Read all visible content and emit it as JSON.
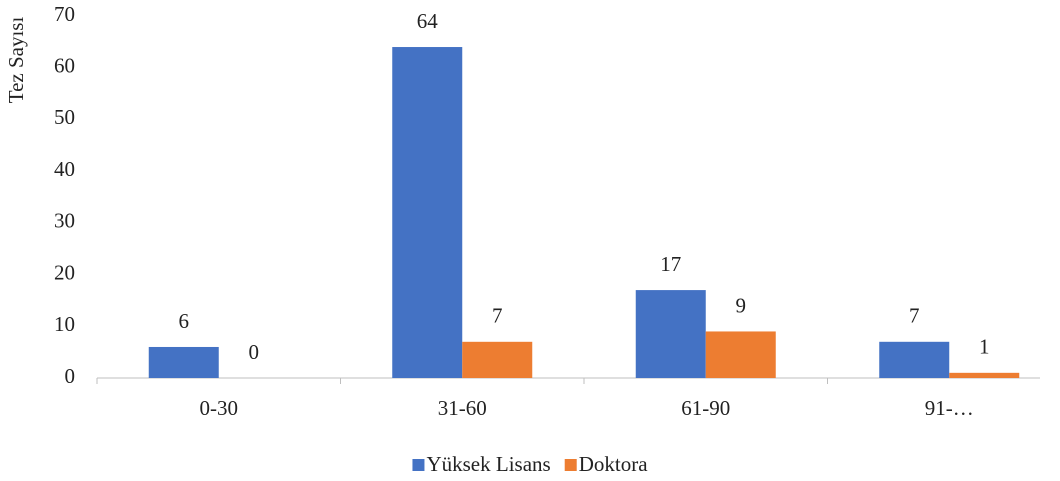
{
  "chart_data": {
    "type": "bar",
    "y_label": "Tez Sayısı",
    "categories": [
      "0-30",
      "31-60",
      "61-90",
      "91-…"
    ],
    "series": [
      {
        "name": "Yüksek Lisans",
        "color": "#4472c4",
        "values": [
          6,
          64,
          17,
          7
        ]
      },
      {
        "name": "Doktora",
        "color": "#ed7d31",
        "values": [
          0,
          7,
          9,
          1
        ]
      }
    ],
    "ylim": [
      0,
      70
    ],
    "yticks": [
      0,
      10,
      20,
      30,
      40,
      50,
      60,
      70
    ],
    "grid": false,
    "legend": "bottom"
  }
}
